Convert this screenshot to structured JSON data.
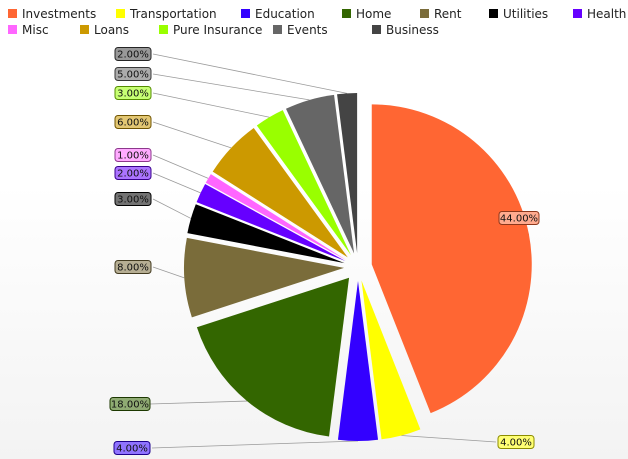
{
  "chart_data": {
    "type": "pie",
    "title": "",
    "exploded": true,
    "value_format": "percent-2dp",
    "legend_position": "top",
    "categories": [
      "Investments",
      "Transportation",
      "Education",
      "Home",
      "Rent",
      "Utilities",
      "Health",
      "Misc",
      "Loans",
      "Pure Insurance",
      "Events",
      "Business"
    ],
    "values": [
      44,
      4,
      4,
      18,
      8,
      3,
      2,
      1,
      6,
      3,
      5,
      2
    ],
    "labels": [
      "44.00%",
      "4.00%",
      "4.00%",
      "18.00%",
      "8.00%",
      "3.00%",
      "2.00%",
      "1.00%",
      "6.00%",
      "3.00%",
      "5.00%",
      "2.00%"
    ],
    "colors": [
      "#ff6633",
      "#ffff00",
      "#3300ff",
      "#336600",
      "#7a6c3a",
      "#000000",
      "#6600ff",
      "#ff66ff",
      "#cc9900",
      "#99ff00",
      "#666666",
      "#444444"
    ]
  }
}
